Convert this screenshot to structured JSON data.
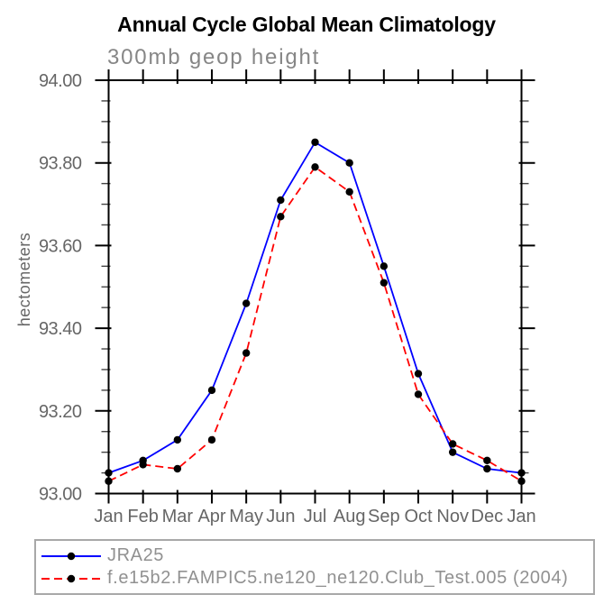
{
  "title": "Annual Cycle Global Mean Climatology",
  "subtitle": "300mb geop height",
  "chart_data": {
    "type": "line",
    "categories": [
      "Jan",
      "Feb",
      "Mar",
      "Apr",
      "May",
      "Jun",
      "Jul",
      "Aug",
      "Sep",
      "Oct",
      "Nov",
      "Dec",
      "Jan"
    ],
    "ylabel": "hectometers",
    "ylim": [
      93.0,
      94.0
    ],
    "ytick_major": [
      93.0,
      93.2,
      93.4,
      93.6,
      93.8,
      94.0
    ],
    "ytick_minor_step": 0.05,
    "ytick_label_format": "2-decimals",
    "grid": false,
    "legend_position": "bottom",
    "series": [
      {
        "name": "JRA25",
        "color": "#0000ff",
        "style": "solid",
        "marker": "circle",
        "marker_color": "#000000",
        "values": [
          93.05,
          93.08,
          93.13,
          93.25,
          93.46,
          93.71,
          93.85,
          93.8,
          93.55,
          93.29,
          93.1,
          93.06,
          93.05
        ]
      },
      {
        "name": "f.e15b2.FAMPIC5.ne120_ne120.Club_Test.005 (2004)",
        "color": "#ff0000",
        "style": "dashed",
        "marker": "circle",
        "marker_color": "#000000",
        "values": [
          93.03,
          93.07,
          93.06,
          93.13,
          93.34,
          93.67,
          93.79,
          93.73,
          93.51,
          93.24,
          93.12,
          93.08,
          93.03
        ]
      }
    ]
  },
  "colors": {
    "axis": "#000000",
    "tick_minor": "#444444",
    "axis_label": "#666666",
    "subtitle_gray": "#868686",
    "legend_text": "#919191",
    "legend_border": "#a8a8a8"
  }
}
